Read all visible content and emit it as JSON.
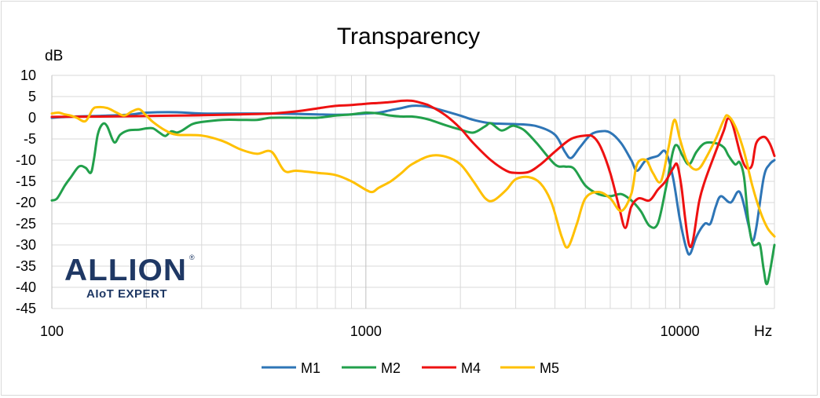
{
  "chart_data": {
    "type": "line",
    "title": "Transparency",
    "ylabel": "dB",
    "xlabel": "Hz",
    "xscale": "log",
    "xlim": [
      100,
      20000
    ],
    "ylim": [
      -45,
      10
    ],
    "yticks": [
      10,
      5,
      0,
      -5,
      -10,
      -15,
      -20,
      -25,
      -30,
      -35,
      -40,
      -45
    ],
    "xtick_labels": [
      {
        "value": 100,
        "label": "100"
      },
      {
        "value": 1000,
        "label": "1000"
      },
      {
        "value": 10000,
        "label": "10000"
      }
    ],
    "grid": true,
    "legend_position": "bottom",
    "series": [
      {
        "name": "M1",
        "color": "#2e75b6",
        "points": [
          [
            100,
            0
          ],
          [
            120,
            0.3
          ],
          [
            150,
            0.5
          ],
          [
            180,
            0.8
          ],
          [
            200,
            1.2
          ],
          [
            250,
            1.3
          ],
          [
            300,
            1
          ],
          [
            400,
            1
          ],
          [
            500,
            1
          ],
          [
            600,
            0.9
          ],
          [
            700,
            0.8
          ],
          [
            800,
            0.7
          ],
          [
            900,
            0.8
          ],
          [
            1000,
            1
          ],
          [
            1100,
            1.2
          ],
          [
            1200,
            1.8
          ],
          [
            1300,
            2.3
          ],
          [
            1400,
            2.8
          ],
          [
            1500,
            2.8
          ],
          [
            1600,
            2.5
          ],
          [
            1700,
            2
          ],
          [
            1800,
            1.5
          ],
          [
            2000,
            0.5
          ],
          [
            2200,
            -0.5
          ],
          [
            2500,
            -1.3
          ],
          [
            3000,
            -1.5
          ],
          [
            3500,
            -2
          ],
          [
            4000,
            -4
          ],
          [
            4300,
            -8
          ],
          [
            4500,
            -9.5
          ],
          [
            4800,
            -7
          ],
          [
            5200,
            -4
          ],
          [
            5600,
            -3.2
          ],
          [
            6000,
            -3.5
          ],
          [
            6500,
            -6
          ],
          [
            7000,
            -10
          ],
          [
            7300,
            -12.5
          ],
          [
            7800,
            -10
          ],
          [
            8500,
            -9
          ],
          [
            9000,
            -8
          ],
          [
            9500,
            -14
          ],
          [
            10000,
            -24
          ],
          [
            10500,
            -31
          ],
          [
            10800,
            -32
          ],
          [
            11300,
            -28
          ],
          [
            12000,
            -25
          ],
          [
            12500,
            -25
          ],
          [
            13000,
            -21
          ],
          [
            13500,
            -18.5
          ],
          [
            14500,
            -20
          ],
          [
            15500,
            -17.5
          ],
          [
            16500,
            -25
          ],
          [
            17000,
            -29
          ],
          [
            17500,
            -26
          ],
          [
            18500,
            -14
          ],
          [
            19300,
            -11
          ],
          [
            20000,
            -10
          ]
        ]
      },
      {
        "name": "M2",
        "color": "#22a04b",
        "points": [
          [
            100,
            -19.5
          ],
          [
            104,
            -19
          ],
          [
            110,
            -16
          ],
          [
            115,
            -14
          ],
          [
            122,
            -11.5
          ],
          [
            128,
            -11.8
          ],
          [
            133,
            -13
          ],
          [
            136,
            -10
          ],
          [
            140,
            -4
          ],
          [
            145,
            -1.5
          ],
          [
            150,
            -2
          ],
          [
            158,
            -5.8
          ],
          [
            165,
            -4
          ],
          [
            175,
            -3
          ],
          [
            190,
            -2.8
          ],
          [
            200,
            -2.5
          ],
          [
            210,
            -2.5
          ],
          [
            220,
            -3.5
          ],
          [
            230,
            -4.3
          ],
          [
            240,
            -3.2
          ],
          [
            250,
            -3.5
          ],
          [
            260,
            -3
          ],
          [
            280,
            -1.5
          ],
          [
            300,
            -1
          ],
          [
            350,
            -0.5
          ],
          [
            400,
            -0.5
          ],
          [
            450,
            -0.5
          ],
          [
            500,
            0
          ],
          [
            600,
            0
          ],
          [
            700,
            0
          ],
          [
            800,
            0.5
          ],
          [
            900,
            0.8
          ],
          [
            1000,
            1.2
          ],
          [
            1100,
            1
          ],
          [
            1200,
            0.5
          ],
          [
            1300,
            0.3
          ],
          [
            1400,
            0.3
          ],
          [
            1500,
            0
          ],
          [
            1600,
            -0.5
          ],
          [
            1800,
            -1.8
          ],
          [
            2000,
            -2.8
          ],
          [
            2200,
            -3.5
          ],
          [
            2400,
            -2
          ],
          [
            2500,
            -1.3
          ],
          [
            2700,
            -3
          ],
          [
            2900,
            -2
          ],
          [
            3000,
            -2
          ],
          [
            3200,
            -3
          ],
          [
            3500,
            -6
          ],
          [
            4000,
            -11
          ],
          [
            4300,
            -11.5
          ],
          [
            4600,
            -12
          ],
          [
            5000,
            -16
          ],
          [
            5500,
            -18
          ],
          [
            6000,
            -18.5
          ],
          [
            6500,
            -18
          ],
          [
            7000,
            -19.5
          ],
          [
            7500,
            -22
          ],
          [
            8000,
            -25.5
          ],
          [
            8500,
            -25
          ],
          [
            9000,
            -17
          ],
          [
            9500,
            -8
          ],
          [
            9800,
            -6.5
          ],
          [
            10200,
            -9
          ],
          [
            10700,
            -11
          ],
          [
            11300,
            -8
          ],
          [
            12000,
            -6
          ],
          [
            13000,
            -6
          ],
          [
            13800,
            -7
          ],
          [
            14300,
            -9
          ],
          [
            15000,
            -11
          ],
          [
            15500,
            -10.5
          ],
          [
            16000,
            -14
          ],
          [
            16500,
            -24
          ],
          [
            17000,
            -29.5
          ],
          [
            17500,
            -30
          ],
          [
            18000,
            -30
          ],
          [
            18500,
            -36
          ],
          [
            19000,
            -39
          ],
          [
            20000,
            -30
          ]
        ]
      },
      {
        "name": "M4",
        "color": "#ee1111",
        "points": [
          [
            100,
            0.2
          ],
          [
            150,
            0.3
          ],
          [
            200,
            0.4
          ],
          [
            250,
            0.5
          ],
          [
            300,
            0.6
          ],
          [
            400,
            0.8
          ],
          [
            500,
            1
          ],
          [
            600,
            1.5
          ],
          [
            700,
            2.2
          ],
          [
            800,
            2.8
          ],
          [
            900,
            3
          ],
          [
            1000,
            3.3
          ],
          [
            1100,
            3.5
          ],
          [
            1200,
            3.7
          ],
          [
            1300,
            4
          ],
          [
            1400,
            4
          ],
          [
            1500,
            3.5
          ],
          [
            1600,
            2.8
          ],
          [
            1800,
            0.5
          ],
          [
            2000,
            -2.5
          ],
          [
            2200,
            -6
          ],
          [
            2500,
            -10
          ],
          [
            2800,
            -12.5
          ],
          [
            3000,
            -13
          ],
          [
            3300,
            -12.8
          ],
          [
            3600,
            -11
          ],
          [
            4000,
            -8
          ],
          [
            4500,
            -5
          ],
          [
            5000,
            -4.2
          ],
          [
            5300,
            -4.5
          ],
          [
            5600,
            -7
          ],
          [
            6000,
            -13
          ],
          [
            6400,
            -21
          ],
          [
            6700,
            -26
          ],
          [
            7000,
            -21
          ],
          [
            7400,
            -19
          ],
          [
            8000,
            -19.5
          ],
          [
            8500,
            -17
          ],
          [
            9000,
            -15
          ],
          [
            9500,
            -12
          ],
          [
            9800,
            -11
          ],
          [
            10100,
            -16
          ],
          [
            10400,
            -24
          ],
          [
            10700,
            -30
          ],
          [
            11000,
            -29
          ],
          [
            11500,
            -20
          ],
          [
            12000,
            -15
          ],
          [
            13000,
            -8
          ],
          [
            13800,
            -3
          ],
          [
            14200,
            -0.2
          ],
          [
            14700,
            -1.5
          ],
          [
            15500,
            -8
          ],
          [
            16000,
            -11
          ],
          [
            16500,
            -12
          ],
          [
            17000,
            -11
          ],
          [
            17500,
            -6
          ],
          [
            18500,
            -4.5
          ],
          [
            19300,
            -6
          ],
          [
            20000,
            -9
          ]
        ]
      },
      {
        "name": "M5",
        "color": "#ffc000",
        "points": [
          [
            100,
            1
          ],
          [
            105,
            1.2
          ],
          [
            110,
            0.8
          ],
          [
            115,
            0.5
          ],
          [
            120,
            0
          ],
          [
            128,
            -0.8
          ],
          [
            135,
            2
          ],
          [
            140,
            2.5
          ],
          [
            150,
            2.3
          ],
          [
            160,
            1.3
          ],
          [
            170,
            0.5
          ],
          [
            180,
            1.5
          ],
          [
            190,
            2
          ],
          [
            200,
            0.5
          ],
          [
            210,
            -1
          ],
          [
            230,
            -3
          ],
          [
            250,
            -4
          ],
          [
            300,
            -4.2
          ],
          [
            350,
            -5.5
          ],
          [
            400,
            -7.5
          ],
          [
            450,
            -8.5
          ],
          [
            500,
            -8
          ],
          [
            550,
            -12.5
          ],
          [
            600,
            -12.5
          ],
          [
            700,
            -13
          ],
          [
            800,
            -13.5
          ],
          [
            900,
            -15
          ],
          [
            1000,
            -17
          ],
          [
            1050,
            -17.5
          ],
          [
            1100,
            -16.5
          ],
          [
            1200,
            -15
          ],
          [
            1300,
            -13
          ],
          [
            1400,
            -11
          ],
          [
            1600,
            -9
          ],
          [
            1800,
            -9.2
          ],
          [
            2000,
            -11
          ],
          [
            2200,
            -15
          ],
          [
            2400,
            -19
          ],
          [
            2550,
            -19.5
          ],
          [
            2800,
            -17
          ],
          [
            3000,
            -14.5
          ],
          [
            3300,
            -14
          ],
          [
            3600,
            -15.5
          ],
          [
            3900,
            -20
          ],
          [
            4200,
            -28
          ],
          [
            4400,
            -30.5
          ],
          [
            4700,
            -25
          ],
          [
            5000,
            -19
          ],
          [
            5500,
            -17.5
          ],
          [
            6000,
            -19
          ],
          [
            6500,
            -22
          ],
          [
            7000,
            -18
          ],
          [
            7300,
            -11
          ],
          [
            7800,
            -10
          ],
          [
            8200,
            -13
          ],
          [
            8700,
            -15
          ],
          [
            9200,
            -7
          ],
          [
            9600,
            -0.5
          ],
          [
            10000,
            -5
          ],
          [
            10500,
            -10
          ],
          [
            11000,
            -12
          ],
          [
            11500,
            -12
          ],
          [
            12000,
            -10
          ],
          [
            13000,
            -5
          ],
          [
            13800,
            -0.5
          ],
          [
            14200,
            0.5
          ],
          [
            15000,
            -2
          ],
          [
            16000,
            -8
          ],
          [
            17000,
            -16
          ],
          [
            18000,
            -22
          ],
          [
            19000,
            -26
          ],
          [
            20000,
            -28
          ]
        ]
      }
    ]
  },
  "logo": {
    "word": "ALLION",
    "registered": "®",
    "tagline": "AIoT EXPERT",
    "color": "#1f3864"
  }
}
